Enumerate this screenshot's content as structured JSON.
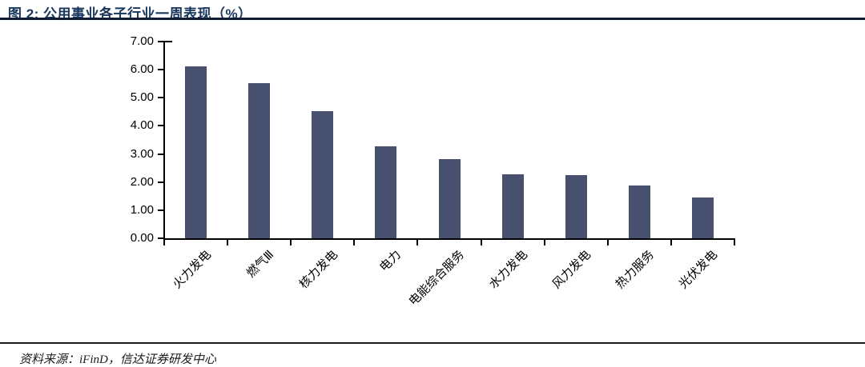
{
  "header": {
    "title": "图 2: 公用事业各子行业一周表现（%）"
  },
  "chart_data": {
    "type": "bar",
    "title": "公用事业各子行业一周表现（%）",
    "categories": [
      "火力发电",
      "燃气Ⅲ",
      "核力发电",
      "电力",
      "电能综合服务",
      "水力发电",
      "风力发电",
      "热力服务",
      "光伏发电"
    ],
    "values": [
      6.11,
      5.53,
      4.52,
      3.27,
      2.81,
      2.29,
      2.24,
      1.89,
      1.45
    ],
    "xlabel": "",
    "ylabel": "",
    "ylim": [
      0,
      7
    ],
    "ytick_labels": [
      "0.00",
      "1.00",
      "2.00",
      "3.00",
      "4.00",
      "5.00",
      "6.00",
      "7.00"
    ],
    "grid": false,
    "legend": false,
    "bar_color": "#47506E",
    "axis_color": "#000000"
  },
  "footer": {
    "source": "资料来源：iFinD，信达证券研发中心"
  }
}
